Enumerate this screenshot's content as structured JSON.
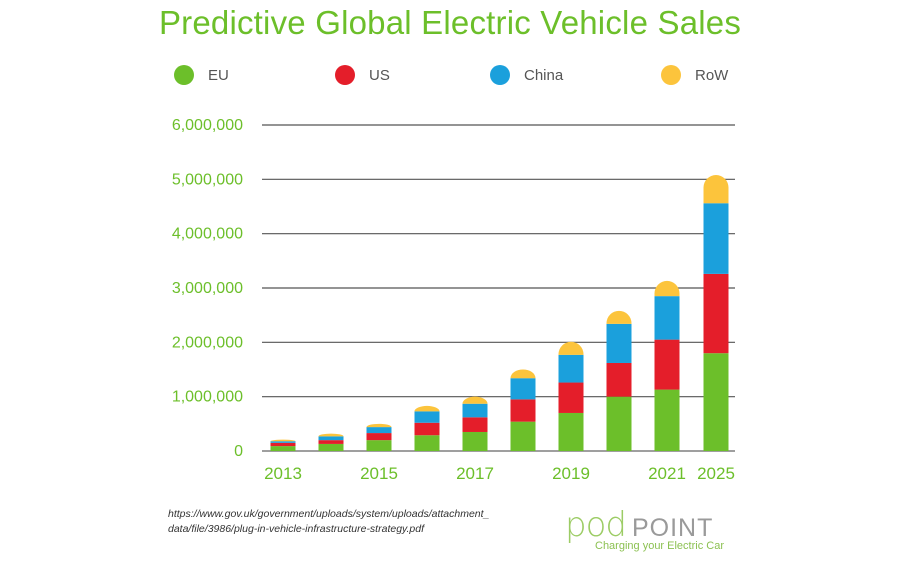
{
  "chart_data": {
    "type": "bar",
    "stacked": true,
    "title": "Predictive Global Electric Vehicle Sales",
    "categories": [
      "2013",
      "2014",
      "2015",
      "2016",
      "2017",
      "2018",
      "2019",
      "2020",
      "2021",
      "2025"
    ],
    "x_tick_labels": [
      "2013",
      "",
      "2015",
      "",
      "2017",
      "",
      "2019",
      "",
      "2021",
      "2025"
    ],
    "series": [
      {
        "name": "EU",
        "color": "#6cbf2a",
        "values": [
          90000,
          130000,
          200000,
          290000,
          350000,
          540000,
          700000,
          1000000,
          1130000,
          1800000
        ]
      },
      {
        "name": "US",
        "color": "#e41e2a",
        "values": [
          60000,
          70000,
          130000,
          230000,
          270000,
          410000,
          560000,
          620000,
          920000,
          1460000
        ]
      },
      {
        "name": "China",
        "color": "#1ba0dc",
        "values": [
          30000,
          70000,
          110000,
          210000,
          250000,
          390000,
          510000,
          720000,
          800000,
          1300000
        ]
      },
      {
        "name": "RoW",
        "color": "#fcc43c",
        "values": [
          30000,
          50000,
          60000,
          100000,
          130000,
          160000,
          240000,
          240000,
          280000,
          520000
        ]
      }
    ],
    "ylim": [
      0,
      6000000
    ],
    "y_ticks": [
      "0",
      "1,000,000",
      "2,000,000",
      "3,000,000",
      "4,000,000",
      "5,000,000",
      "6,000,000"
    ],
    "grid": true,
    "legend_position": "top"
  },
  "legend": [
    {
      "name": "EU",
      "color": "#6cbf2a"
    },
    {
      "name": "US",
      "color": "#e41e2a"
    },
    {
      "name": "China",
      "color": "#1ba0dc"
    },
    {
      "name": "RoW",
      "color": "#fcc43c"
    }
  ],
  "source": {
    "line1": "https://www.gov.uk/government/uploads/system/uploads/attachment_",
    "line2": "data/file/3986/plug-in-vehicle-infrastructure-strategy.pdf"
  },
  "logo": {
    "brand": "pod",
    "brand2": "POINT",
    "tagline": "Charging your Electric Car"
  }
}
